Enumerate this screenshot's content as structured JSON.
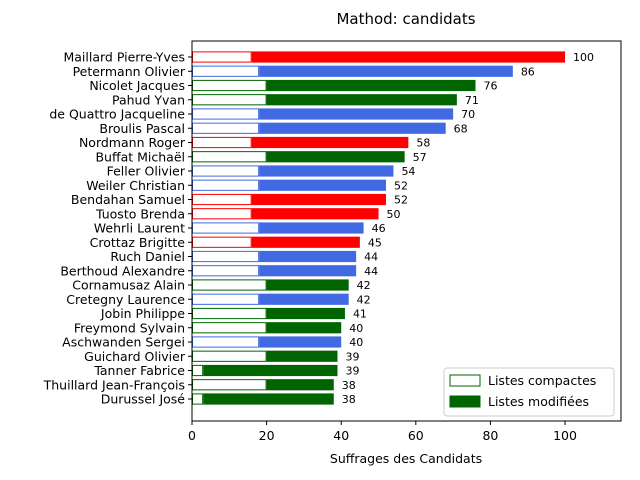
{
  "chart_data": {
    "type": "bar",
    "orientation": "horizontal",
    "title": "Mathod: candidats",
    "xlabel": "Suffrages des Candidats",
    "xlim": [
      0,
      115
    ],
    "xticks": [
      0,
      20,
      40,
      60,
      80,
      100
    ],
    "grid": false,
    "legend_position": "lower-right",
    "legend": [
      {
        "name": "Listes compactes",
        "style": "outline",
        "color": "#006400"
      },
      {
        "name": "Listes modifiées",
        "style": "filled",
        "color": "#006400"
      }
    ],
    "party_colors": {
      "red": "#ff0000",
      "blue": "#4169e1",
      "green": "#006400"
    },
    "candidates": [
      {
        "name": "Maillard Pierre-Yves",
        "total": 100,
        "compact": 16,
        "party": "red"
      },
      {
        "name": "Petermann Olivier",
        "total": 86,
        "compact": 18,
        "party": "blue"
      },
      {
        "name": "Nicolet Jacques",
        "total": 76,
        "compact": 20,
        "party": "green"
      },
      {
        "name": "Pahud Yvan",
        "total": 71,
        "compact": 20,
        "party": "green"
      },
      {
        "name": "de Quattro Jacqueline",
        "total": 70,
        "compact": 18,
        "party": "blue"
      },
      {
        "name": "Broulis Pascal",
        "total": 68,
        "compact": 18,
        "party": "blue"
      },
      {
        "name": "Nordmann Roger",
        "total": 58,
        "compact": 16,
        "party": "red"
      },
      {
        "name": "Buffat Michaël",
        "total": 57,
        "compact": 20,
        "party": "green"
      },
      {
        "name": "Feller Olivier",
        "total": 54,
        "compact": 18,
        "party": "blue"
      },
      {
        "name": "Weiler Christian",
        "total": 52,
        "compact": 18,
        "party": "blue"
      },
      {
        "name": "Bendahan Samuel",
        "total": 52,
        "compact": 16,
        "party": "red"
      },
      {
        "name": "Tuosto Brenda",
        "total": 50,
        "compact": 16,
        "party": "red"
      },
      {
        "name": "Wehrli Laurent",
        "total": 46,
        "compact": 18,
        "party": "blue"
      },
      {
        "name": "Crottaz Brigitte",
        "total": 45,
        "compact": 16,
        "party": "red"
      },
      {
        "name": "Ruch Daniel",
        "total": 44,
        "compact": 18,
        "party": "blue"
      },
      {
        "name": "Berthoud Alexandre",
        "total": 44,
        "compact": 18,
        "party": "blue"
      },
      {
        "name": "Cornamusaz Alain",
        "total": 42,
        "compact": 20,
        "party": "green"
      },
      {
        "name": "Cretegny Laurence",
        "total": 42,
        "compact": 18,
        "party": "blue"
      },
      {
        "name": "Jobin Philippe",
        "total": 41,
        "compact": 20,
        "party": "green"
      },
      {
        "name": "Freymond Sylvain",
        "total": 40,
        "compact": 20,
        "party": "green"
      },
      {
        "name": "Aschwanden Sergei",
        "total": 40,
        "compact": 18,
        "party": "blue"
      },
      {
        "name": "Guichard Olivier",
        "total": 39,
        "compact": 20,
        "party": "green"
      },
      {
        "name": "Tanner Fabrice",
        "total": 39,
        "compact": 3,
        "party": "green"
      },
      {
        "name": "Thuillard Jean-François",
        "total": 38,
        "compact": 20,
        "party": "green"
      },
      {
        "name": "Durussel José",
        "total": 38,
        "compact": 3,
        "party": "green"
      }
    ]
  }
}
